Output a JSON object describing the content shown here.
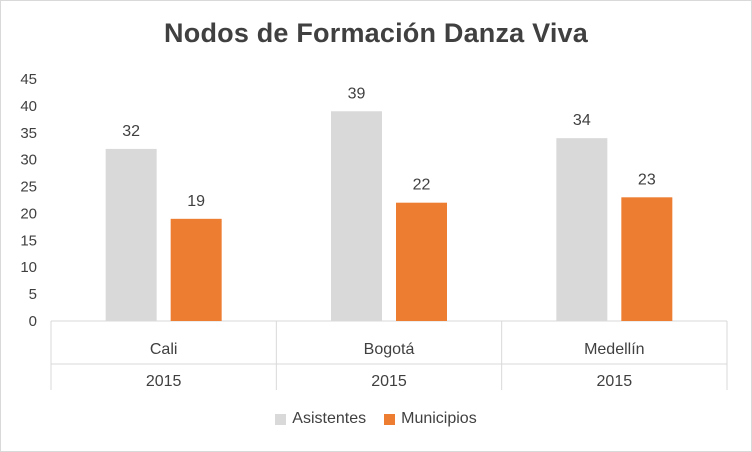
{
  "chart_data": {
    "type": "bar",
    "title": "Nodos de Formación Danza Viva",
    "categories": [
      "Cali",
      "Bogotá",
      "Medellín"
    ],
    "category_groups": [
      "2015",
      "2015",
      "2015"
    ],
    "series": [
      {
        "name": "Asistentes",
        "values": [
          32,
          39,
          34
        ],
        "color": "#d9d9d9"
      },
      {
        "name": "Municipios",
        "values": [
          19,
          22,
          23
        ],
        "color": "#ed7d31"
      }
    ],
    "ylim": [
      0,
      45
    ],
    "yticks": [
      0,
      5,
      10,
      15,
      20,
      25,
      30,
      35,
      40,
      45
    ],
    "grid": false,
    "legend": "bottom-center",
    "xlabel": "",
    "ylabel": ""
  }
}
